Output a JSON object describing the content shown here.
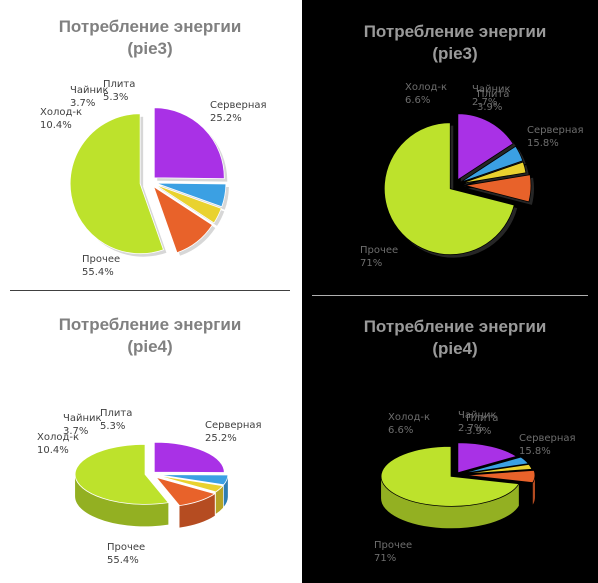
{
  "colors": {
    "light_bg": "#ffffff",
    "dark_bg": "#000000",
    "light_title": "#808080",
    "dark_title": "#9a9a9a",
    "light_label": "#404040",
    "dark_label": "#6e6e6e",
    "light_separator": "#404040",
    "dark_separator": "#b0b0b0"
  },
  "chart_data": [
    {
      "type": "pie",
      "title_line1": "Потребление энергии",
      "title_line2": "(pie3)",
      "theme": "light",
      "style": "flat-shadowed-exploded",
      "slices": [
        {
          "name": "Серверная",
          "pct": "25.2%",
          "value": 25.2,
          "color": "#a931e6"
        },
        {
          "name": "Прочее",
          "pct": "55.4%",
          "value": 55.4,
          "color": "#bde22c"
        },
        {
          "name": "Холод-к",
          "pct": "10.4%",
          "value": 10.4,
          "color": "#e8622a"
        },
        {
          "name": "Чайник",
          "pct": "3.7%",
          "value": 3.7,
          "color": "#e9d22f"
        },
        {
          "name": "Плита",
          "pct": "5.3%",
          "value": 5.3,
          "color": "#3ba0e3"
        }
      ]
    },
    {
      "type": "pie",
      "title_line1": "Потребление энергии",
      "title_line2": "(pie3)",
      "theme": "dark",
      "style": "flat-shadowed-exploded",
      "slices": [
        {
          "name": "Серверная",
          "pct": "15.8%",
          "value": 15.8,
          "color": "#a931e6"
        },
        {
          "name": "Прочее",
          "pct": "71%",
          "value": 71.0,
          "color": "#bde22c"
        },
        {
          "name": "Холод-к",
          "pct": "6.6%",
          "value": 6.6,
          "color": "#e8622a"
        },
        {
          "name": "Чайник",
          "pct": "2.7%",
          "value": 2.7,
          "color": "#e9d22f"
        },
        {
          "name": "Плита",
          "pct": "3.9%",
          "value": 3.9,
          "color": "#3ba0e3"
        }
      ]
    },
    {
      "type": "pie",
      "title_line1": "Потребление энергии",
      "title_line2": "(pie4)",
      "theme": "light",
      "style": "3d-exploded",
      "slices": [
        {
          "name": "Серверная",
          "pct": "25.2%",
          "value": 25.2,
          "color": "#a931e6"
        },
        {
          "name": "Прочее",
          "pct": "55.4%",
          "value": 55.4,
          "color": "#bde22c"
        },
        {
          "name": "Холод-к",
          "pct": "10.4%",
          "value": 10.4,
          "color": "#e8622a"
        },
        {
          "name": "Чайник",
          "pct": "3.7%",
          "value": 3.7,
          "color": "#e9d22f"
        },
        {
          "name": "Плита",
          "pct": "5.3%",
          "value": 5.3,
          "color": "#3ba0e3"
        }
      ]
    },
    {
      "type": "pie",
      "title_line1": "Потребление энергии",
      "title_line2": "(pie4)",
      "theme": "dark",
      "style": "3d-exploded",
      "slices": [
        {
          "name": "Серверная",
          "pct": "15.8%",
          "value": 15.8,
          "color": "#a931e6"
        },
        {
          "name": "Прочее",
          "pct": "71%",
          "value": 71.0,
          "color": "#bde22c"
        },
        {
          "name": "Холод-к",
          "pct": "6.6%",
          "value": 6.6,
          "color": "#e8622a"
        },
        {
          "name": "Чайник",
          "pct": "2.7%",
          "value": 2.7,
          "color": "#e9d22f"
        },
        {
          "name": "Плита",
          "pct": "3.9%",
          "value": 3.9,
          "color": "#3ba0e3"
        }
      ]
    }
  ]
}
